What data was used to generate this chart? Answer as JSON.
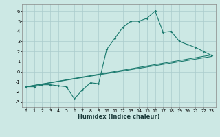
{
  "xlabel": "Humidex (Indice chaleur)",
  "background_color": "#cce8e4",
  "grid_color": "#aacccc",
  "line_color": "#1a7a6e",
  "xlim": [
    -0.5,
    23.5
  ],
  "ylim": [
    -3.5,
    6.7
  ],
  "xticks": [
    0,
    1,
    2,
    3,
    4,
    5,
    6,
    7,
    8,
    9,
    10,
    11,
    12,
    13,
    14,
    15,
    16,
    17,
    18,
    19,
    20,
    21,
    22,
    23
  ],
  "yticks": [
    -3,
    -2,
    -1,
    0,
    1,
    2,
    3,
    4,
    5,
    6
  ],
  "series1_x": [
    0,
    1,
    2,
    3,
    4,
    5,
    6,
    7,
    8,
    9,
    10,
    11,
    12,
    13,
    14,
    15,
    16,
    17,
    18,
    19,
    20,
    21,
    22,
    23
  ],
  "series1_y": [
    -1.5,
    -1.5,
    -1.3,
    -1.3,
    -1.4,
    -1.5,
    -2.7,
    -1.8,
    -1.1,
    -1.2,
    2.2,
    3.3,
    4.4,
    5.0,
    5.0,
    5.3,
    6.0,
    3.9,
    4.0,
    3.0,
    2.7,
    2.4,
    2.0,
    1.6
  ],
  "series2_x": [
    0,
    23
  ],
  "series2_y": [
    -1.5,
    1.5
  ],
  "series3_x": [
    0,
    23
  ],
  "series3_y": [
    -1.5,
    1.65
  ],
  "xlabel_fontsize": 6.0,
  "tick_fontsize": 4.8,
  "linewidth": 0.8,
  "markersize": 1.8
}
